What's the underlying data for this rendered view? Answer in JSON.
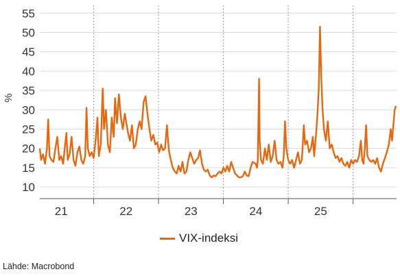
{
  "chart_data": {
    "type": "line",
    "ylabel": "%",
    "ylim": [
      7,
      57
    ],
    "y_ticks": [
      10,
      15,
      20,
      25,
      30,
      35,
      40,
      45,
      50,
      55
    ],
    "x_range": [
      2020.67,
      2026.17
    ],
    "x_ticks": [
      {
        "label": "21",
        "at": 2021.0
      },
      {
        "label": "22",
        "at": 2022.0
      },
      {
        "label": "23",
        "at": 2023.0
      },
      {
        "label": "24",
        "at": 2024.0
      },
      {
        "label": "25",
        "at": 2025.0
      }
    ],
    "year_dividers": [
      2021.5,
      2022.5,
      2023.5,
      2024.5,
      2025.5
    ],
    "grid": "horizontal",
    "legend_position": "bottom-center",
    "series": [
      {
        "name": "VIX-indeksi",
        "color": "#e8660e",
        "points": [
          [
            2020.67,
            20
          ],
          [
            2020.69,
            17
          ],
          [
            2020.72,
            18.5
          ],
          [
            2020.75,
            16
          ],
          [
            2020.78,
            20
          ],
          [
            2020.8,
            27.5
          ],
          [
            2020.82,
            18
          ],
          [
            2020.85,
            17
          ],
          [
            2020.88,
            16.5
          ],
          [
            2020.91,
            20
          ],
          [
            2020.94,
            23
          ],
          [
            2020.97,
            17
          ],
          [
            2021.0,
            18
          ],
          [
            2021.03,
            16
          ],
          [
            2021.06,
            21
          ],
          [
            2021.08,
            24
          ],
          [
            2021.1,
            17
          ],
          [
            2021.13,
            18.5
          ],
          [
            2021.16,
            23
          ],
          [
            2021.19,
            17
          ],
          [
            2021.22,
            15.5
          ],
          [
            2021.25,
            19
          ],
          [
            2021.28,
            20.5
          ],
          [
            2021.31,
            17
          ],
          [
            2021.34,
            16
          ],
          [
            2021.37,
            18
          ],
          [
            2021.39,
            30.5
          ],
          [
            2021.41,
            20
          ],
          [
            2021.44,
            18
          ],
          [
            2021.47,
            19
          ],
          [
            2021.5,
            17.5
          ],
          [
            2021.53,
            22
          ],
          [
            2021.56,
            28
          ],
          [
            2021.58,
            18
          ],
          [
            2021.61,
            21
          ],
          [
            2021.64,
            35.5
          ],
          [
            2021.66,
            25
          ],
          [
            2021.69,
            30
          ],
          [
            2021.72,
            21
          ],
          [
            2021.75,
            19
          ],
          [
            2021.78,
            28
          ],
          [
            2021.81,
            23
          ],
          [
            2021.83,
            33
          ],
          [
            2021.86,
            26.5
          ],
          [
            2021.89,
            34
          ],
          [
            2021.92,
            28
          ],
          [
            2021.95,
            25
          ],
          [
            2021.98,
            29
          ],
          [
            2022.0,
            27
          ],
          [
            2022.03,
            24
          ],
          [
            2022.06,
            22
          ],
          [
            2022.09,
            26
          ],
          [
            2022.12,
            20
          ],
          [
            2022.15,
            21
          ],
          [
            2022.18,
            25
          ],
          [
            2022.21,
            27
          ],
          [
            2022.24,
            25
          ],
          [
            2022.27,
            32
          ],
          [
            2022.3,
            33.5
          ],
          [
            2022.33,
            29
          ],
          [
            2022.36,
            25
          ],
          [
            2022.39,
            22
          ],
          [
            2022.42,
            23.5
          ],
          [
            2022.45,
            21
          ],
          [
            2022.48,
            21.5
          ],
          [
            2022.51,
            19
          ],
          [
            2022.54,
            21
          ],
          [
            2022.57,
            19.5
          ],
          [
            2022.6,
            20
          ],
          [
            2022.63,
            26
          ],
          [
            2022.66,
            19.5
          ],
          [
            2022.69,
            17
          ],
          [
            2022.72,
            15
          ],
          [
            2022.75,
            14
          ],
          [
            2022.78,
            13.5
          ],
          [
            2022.81,
            15.5
          ],
          [
            2022.84,
            14
          ],
          [
            2022.87,
            16.5
          ],
          [
            2022.9,
            13.5
          ],
          [
            2022.93,
            14
          ],
          [
            2022.96,
            17
          ],
          [
            2022.99,
            19
          ],
          [
            2023.02,
            17.5
          ],
          [
            2023.05,
            16
          ],
          [
            2023.08,
            17
          ],
          [
            2023.11,
            17.5
          ],
          [
            2023.14,
            19.5
          ],
          [
            2023.17,
            16
          ],
          [
            2023.2,
            14.5
          ],
          [
            2023.23,
            14
          ],
          [
            2023.26,
            14.5
          ],
          [
            2023.29,
            13
          ],
          [
            2023.32,
            12.5
          ],
          [
            2023.35,
            13
          ],
          [
            2023.38,
            12.8
          ],
          [
            2023.41,
            13.5
          ],
          [
            2023.44,
            14
          ],
          [
            2023.47,
            13.5
          ],
          [
            2023.5,
            15
          ],
          [
            2023.53,
            14
          ],
          [
            2023.56,
            15.5
          ],
          [
            2023.59,
            14
          ],
          [
            2023.62,
            16.5
          ],
          [
            2023.65,
            15
          ],
          [
            2023.68,
            13.5
          ],
          [
            2023.71,
            13
          ],
          [
            2023.74,
            12.5
          ],
          [
            2023.77,
            12.5
          ],
          [
            2023.8,
            12.8
          ],
          [
            2023.83,
            14
          ],
          [
            2023.86,
            13
          ],
          [
            2023.89,
            12.8
          ],
          [
            2023.92,
            15
          ],
          [
            2023.95,
            16.5
          ],
          [
            2024.0,
            16
          ],
          [
            2024.02,
            15
          ],
          [
            2024.03,
            17
          ],
          [
            2024.05,
            38
          ],
          [
            2024.06,
            22
          ],
          [
            2024.08,
            17
          ],
          [
            2024.11,
            16
          ],
          [
            2024.14,
            20
          ],
          [
            2024.17,
            17
          ],
          [
            2024.2,
            21
          ],
          [
            2024.23,
            16.5
          ],
          [
            2024.26,
            18
          ],
          [
            2024.29,
            22
          ],
          [
            2024.32,
            17
          ],
          [
            2024.35,
            16
          ],
          [
            2024.38,
            16.5
          ],
          [
            2024.41,
            15
          ],
          [
            2024.43,
            18
          ],
          [
            2024.45,
            27
          ],
          [
            2024.47,
            20
          ],
          [
            2024.5,
            17
          ],
          [
            2024.53,
            16
          ],
          [
            2024.56,
            17
          ],
          [
            2024.59,
            15
          ],
          [
            2024.62,
            17
          ],
          [
            2024.65,
            19
          ],
          [
            2024.68,
            16
          ],
          [
            2024.71,
            17
          ],
          [
            2024.74,
            26
          ],
          [
            2024.76,
            21
          ],
          [
            2024.79,
            22
          ],
          [
            2024.82,
            19
          ],
          [
            2024.85,
            20
          ],
          [
            2024.88,
            23
          ],
          [
            2024.9,
            18
          ],
          [
            2024.93,
            24
          ],
          [
            2024.95,
            29
          ],
          [
            2024.97,
            35
          ],
          [
            2024.99,
            51.5
          ],
          [
            2025.01,
            38
          ],
          [
            2025.03,
            30
          ],
          [
            2025.05,
            25
          ],
          [
            2025.08,
            22
          ],
          [
            2025.11,
            27
          ],
          [
            2025.14,
            20
          ],
          [
            2025.17,
            21
          ],
          [
            2025.2,
            19
          ],
          [
            2025.23,
            17.5
          ],
          [
            2025.26,
            18
          ],
          [
            2025.29,
            16.5
          ],
          [
            2025.32,
            17.5
          ],
          [
            2025.35,
            16
          ],
          [
            2025.38,
            15.5
          ],
          [
            2025.41,
            16.5
          ],
          [
            2025.44,
            15
          ],
          [
            2025.47,
            17
          ],
          [
            2025.5,
            16
          ],
          [
            2025.53,
            17
          ],
          [
            2025.56,
            16.5
          ],
          [
            2025.59,
            18
          ],
          [
            2025.62,
            22
          ],
          [
            2025.64,
            17
          ],
          [
            2025.66,
            16
          ],
          [
            2025.68,
            20
          ],
          [
            2025.7,
            26
          ],
          [
            2025.72,
            18
          ],
          [
            2025.75,
            17
          ],
          [
            2025.78,
            16.5
          ],
          [
            2025.81,
            17
          ],
          [
            2025.84,
            16
          ],
          [
            2025.87,
            17.5
          ],
          [
            2025.9,
            15
          ],
          [
            2025.93,
            14
          ],
          [
            2025.96,
            16
          ],
          [
            2025.99,
            17.5
          ],
          [
            2026.02,
            19
          ],
          [
            2026.05,
            21
          ],
          [
            2026.08,
            25
          ],
          [
            2026.1,
            22
          ],
          [
            2026.12,
            26
          ],
          [
            2026.14,
            30
          ],
          [
            2026.16,
            31
          ]
        ]
      }
    ]
  },
  "legend": {
    "label": "VIX-indeksi"
  },
  "source": "Lähde: Macrobond"
}
